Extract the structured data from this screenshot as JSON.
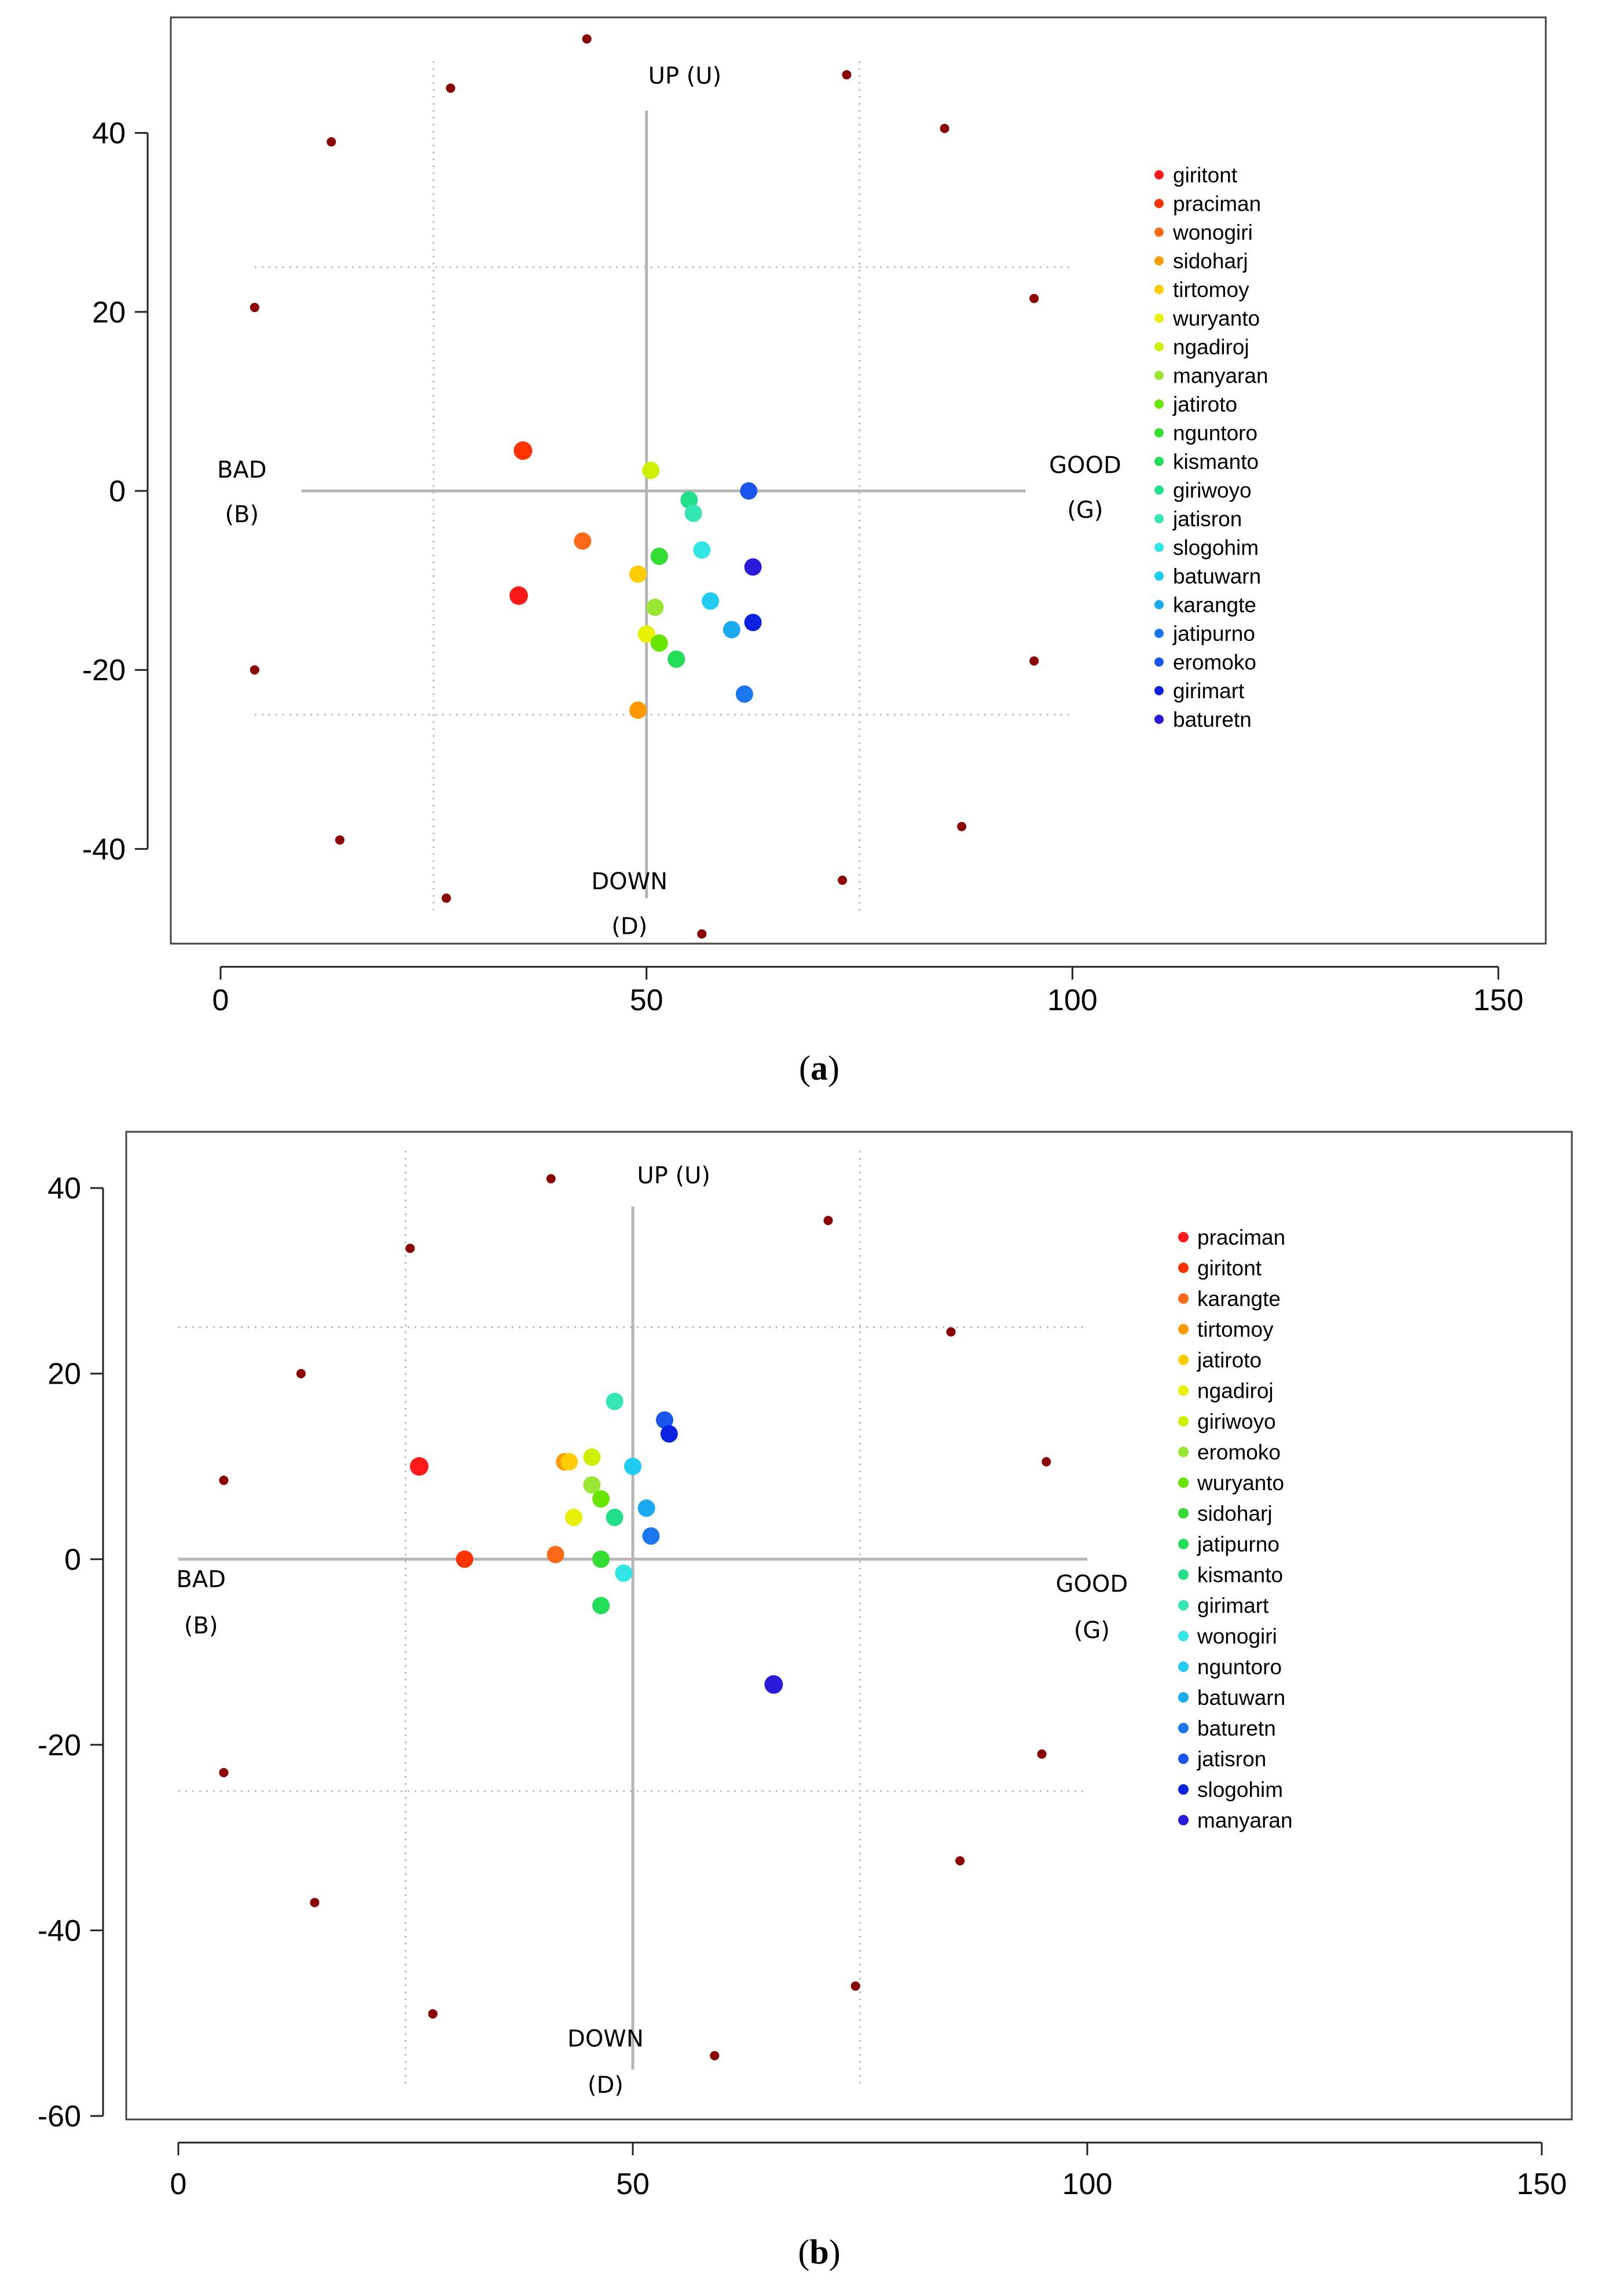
{
  "chart_data": [
    {
      "type": "scatter",
      "caption": {
        "open": "(",
        "letter": "a",
        "close": ")"
      },
      "xlim": [
        0,
        150
      ],
      "ylim": [
        -50,
        50
      ],
      "x_ticks": [
        "0",
        "50",
        "100",
        "150"
      ],
      "y_ticks": [
        "40",
        "20",
        "0",
        "-20",
        "-40"
      ],
      "quadrant_labels": {
        "up": "UP (U)",
        "down": "DOWN",
        "down_abbr": "(D)",
        "bad": "BAD",
        "bad_abbr": "(B)",
        "good": "GOOD",
        "good_abbr": "(G)"
      },
      "ring_color": "#8b0000",
      "ring_points": [
        {
          "x": 43,
          "y": 50.5
        },
        {
          "x": 73.5,
          "y": 46.5
        },
        {
          "x": 27,
          "y": 45
        },
        {
          "x": 85,
          "y": 40.5
        },
        {
          "x": 13,
          "y": 39
        },
        {
          "x": 4,
          "y": 20.5
        },
        {
          "x": 95.5,
          "y": 21.5
        },
        {
          "x": 4,
          "y": -20
        },
        {
          "x": 95.5,
          "y": -19
        },
        {
          "x": 14,
          "y": -39
        },
        {
          "x": 87,
          "y": -37.5
        },
        {
          "x": 26.5,
          "y": -45.5
        },
        {
          "x": 73,
          "y": -43.5
        },
        {
          "x": 56.5,
          "y": -49.5
        }
      ],
      "points": [
        {
          "name": "giritont",
          "color": "#ff1a1a",
          "x": 35,
          "y": -11.7
        },
        {
          "name": "praciman",
          "color": "#ff3300",
          "x": 35.5,
          "y": 4.5
        },
        {
          "name": "wonogiri",
          "color": "#ff6a1a",
          "x": 42.5,
          "y": -5.6
        },
        {
          "name": "sidoharj",
          "color": "#ff9900",
          "x": 49,
          "y": -24.5
        },
        {
          "name": "tirtomoy",
          "color": "#ffcc00",
          "x": 49,
          "y": -9.3
        },
        {
          "name": "wuryanto",
          "color": "#e6f000",
          "x": 50,
          "y": -16
        },
        {
          "name": "ngadiroj",
          "color": "#ccf000",
          "x": 50.5,
          "y": 2.3
        },
        {
          "name": "manyaran",
          "color": "#99e633",
          "x": 51,
          "y": -13
        },
        {
          "name": "jatiroto",
          "color": "#66e600",
          "x": 51.5,
          "y": -17
        },
        {
          "name": "nguntoro",
          "color": "#33dd33",
          "x": 51.5,
          "y": -7.3
        },
        {
          "name": "kismanto",
          "color": "#22dd55",
          "x": 53.5,
          "y": -18.8
        },
        {
          "name": "giriwoyo",
          "color": "#22e08a",
          "x": 55,
          "y": -1
        },
        {
          "name": "jatisron",
          "color": "#33e6b3",
          "x": 55.5,
          "y": -2.5
        },
        {
          "name": "slogohim",
          "color": "#33e6e6",
          "x": 56.5,
          "y": -6.6
        },
        {
          "name": "batuwarn",
          "color": "#22ccf0",
          "x": 57.5,
          "y": -12.3
        },
        {
          "name": "karangte",
          "color": "#1aaaf0",
          "x": 60,
          "y": -15.5
        },
        {
          "name": "jatipurno",
          "color": "#1a77f0",
          "x": 61.5,
          "y": -22.7
        },
        {
          "name": "eromoko",
          "color": "#1a55f0",
          "x": 62,
          "y": 0
        },
        {
          "name": "girimart",
          "color": "#0a22e0",
          "x": 62.5,
          "y": -14.7
        },
        {
          "name": "baturetn",
          "color": "#2a1ad9",
          "x": 62.5,
          "y": -8.5
        }
      ]
    },
    {
      "type": "scatter",
      "caption": {
        "open": "(",
        "letter": "b",
        "close": ")"
      },
      "xlim": [
        0,
        150
      ],
      "ylim": [
        -60,
        45
      ],
      "x_ticks": [
        "0",
        "50",
        "100",
        "150"
      ],
      "y_ticks": [
        "40",
        "20",
        "0",
        "-20",
        "-40",
        "-60"
      ],
      "quadrant_labels": {
        "up": "UP (U)",
        "down": "DOWN",
        "down_abbr": "(D)",
        "bad": "BAD",
        "bad_abbr": "(B)",
        "good": "GOOD",
        "good_abbr": "(G)"
      },
      "ring_color": "#8b0000",
      "ring_points": [
        {
          "x": 41,
          "y": 41
        },
        {
          "x": 71.5,
          "y": 36.5
        },
        {
          "x": 25.5,
          "y": 33.5
        },
        {
          "x": 85,
          "y": 24.5
        },
        {
          "x": 13.5,
          "y": 20
        },
        {
          "x": 95.5,
          "y": 10.5
        },
        {
          "x": 5,
          "y": 8.5
        },
        {
          "x": 5,
          "y": -23
        },
        {
          "x": 95,
          "y": -21
        },
        {
          "x": 86,
          "y": -32.5
        },
        {
          "x": 15,
          "y": -37
        },
        {
          "x": 74.5,
          "y": -46
        },
        {
          "x": 28,
          "y": -49
        },
        {
          "x": 59,
          "y": -53.5
        }
      ],
      "points": [
        {
          "name": "praciman",
          "color": "#ff1a1a",
          "x": 26.5,
          "y": 10
        },
        {
          "name": "giritont",
          "color": "#ff3300",
          "x": 31.5,
          "y": 0
        },
        {
          "name": "karangte",
          "color": "#ff6a1a",
          "x": 41.5,
          "y": 0.5
        },
        {
          "name": "tirtomoy",
          "color": "#ff9900",
          "x": 42.5,
          "y": 10.5
        },
        {
          "name": "jatiroto",
          "color": "#ffcc00",
          "x": 43,
          "y": 10.5
        },
        {
          "name": "ngadiroj",
          "color": "#e6f000",
          "x": 43.5,
          "y": 4.5
        },
        {
          "name": "giriwoyo",
          "color": "#ccf000",
          "x": 45.5,
          "y": 11
        },
        {
          "name": "eromoko",
          "color": "#99e633",
          "x": 45.5,
          "y": 8
        },
        {
          "name": "wuryanto",
          "color": "#66e600",
          "x": 46.5,
          "y": 6.5
        },
        {
          "name": "sidoharj",
          "color": "#33dd33",
          "x": 46.5,
          "y": 0
        },
        {
          "name": "jatipurno",
          "color": "#22dd55",
          "x": 46.5,
          "y": -5
        },
        {
          "name": "kismanto",
          "color": "#22e08a",
          "x": 48,
          "y": 4.5
        },
        {
          "name": "girimart",
          "color": "#33e6b3",
          "x": 48,
          "y": 17
        },
        {
          "name": "wonogiri",
          "color": "#33e6e6",
          "x": 49,
          "y": -1.5
        },
        {
          "name": "nguntoro",
          "color": "#22ccf0",
          "x": 50,
          "y": 10
        },
        {
          "name": "batuwarn",
          "color": "#1aaaf0",
          "x": 51.5,
          "y": 5.5
        },
        {
          "name": "baturetn",
          "color": "#1a77f0",
          "x": 52,
          "y": 2.5
        },
        {
          "name": "jatisron",
          "color": "#1a55f0",
          "x": 53.5,
          "y": 15
        },
        {
          "name": "slogohim",
          "color": "#0a22e0",
          "x": 54,
          "y": 13.5
        },
        {
          "name": "manyaran",
          "color": "#2a1ad9",
          "x": 65.5,
          "y": -13.5
        }
      ]
    }
  ]
}
